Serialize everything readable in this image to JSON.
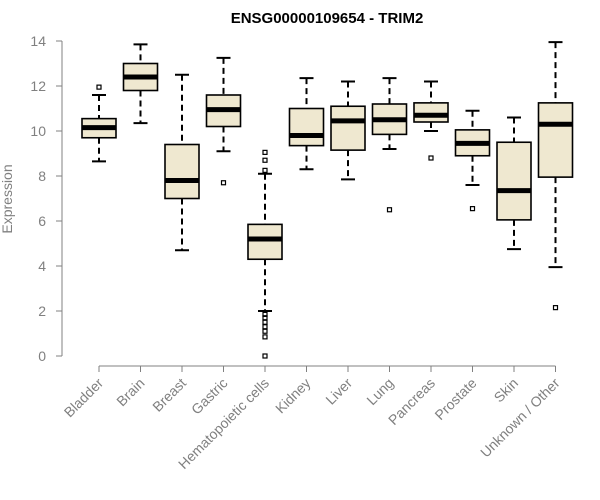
{
  "chart_data": {
    "type": "boxplot",
    "title": "ENSG00000109654 - TRIM2",
    "xlabel": "",
    "ylabel": "Expression",
    "ylim": [
      0,
      14
    ],
    "yticks": [
      0,
      2,
      4,
      6,
      8,
      10,
      12,
      14
    ],
    "categories": [
      "Bladder",
      "Brain",
      "Breast",
      "Gastric",
      "Hematopoietic cells",
      "Kidney",
      "Liver",
      "Lung",
      "Pancreas",
      "Prostate",
      "Skin",
      "Unknown / Other"
    ],
    "boxes": [
      {
        "category": "Bladder",
        "min": 8.65,
        "q1": 9.7,
        "median": 10.15,
        "q3": 10.55,
        "max": 11.6,
        "outliers": [
          11.95
        ]
      },
      {
        "category": "Brain",
        "min": 10.35,
        "q1": 11.8,
        "median": 12.4,
        "q3": 13.0,
        "max": 13.85,
        "outliers": []
      },
      {
        "category": "Breast",
        "min": 4.7,
        "q1": 7.0,
        "median": 7.8,
        "q3": 9.4,
        "max": 12.5,
        "outliers": []
      },
      {
        "category": "Gastric",
        "min": 9.1,
        "q1": 10.2,
        "median": 10.95,
        "q3": 11.6,
        "max": 13.25,
        "outliers": [
          7.7
        ]
      },
      {
        "category": "Hematopoietic cells",
        "min": 2.0,
        "q1": 4.3,
        "median": 5.2,
        "q3": 5.85,
        "max": 8.1,
        "outliers": [
          0.0,
          0.85,
          1.1,
          1.3,
          1.5,
          1.7,
          1.85,
          8.25,
          8.7,
          9.05
        ]
      },
      {
        "category": "Kidney",
        "min": 8.3,
        "q1": 9.35,
        "median": 9.8,
        "q3": 11.0,
        "max": 12.35,
        "outliers": []
      },
      {
        "category": "Liver",
        "min": 7.85,
        "q1": 9.15,
        "median": 10.45,
        "q3": 11.1,
        "max": 12.2,
        "outliers": []
      },
      {
        "category": "Lung",
        "min": 9.2,
        "q1": 9.85,
        "median": 10.5,
        "q3": 11.2,
        "max": 12.35,
        "outliers": [
          6.5
        ]
      },
      {
        "category": "Pancreas",
        "min": 10.0,
        "q1": 10.4,
        "median": 10.7,
        "q3": 11.25,
        "max": 12.2,
        "outliers": [
          8.8
        ]
      },
      {
        "category": "Prostate",
        "min": 7.6,
        "q1": 8.9,
        "median": 9.45,
        "q3": 10.05,
        "max": 10.9,
        "outliers": [
          6.55
        ]
      },
      {
        "category": "Skin",
        "min": 4.75,
        "q1": 6.05,
        "median": 7.35,
        "q3": 9.5,
        "max": 10.6,
        "outliers": []
      },
      {
        "category": "Unknown / Other",
        "min": 3.95,
        "q1": 7.95,
        "median": 10.3,
        "q3": 11.25,
        "max": 13.95,
        "outliers": [
          2.15
        ]
      }
    ],
    "box_fill": "#efe8d0",
    "line_color": "#000000",
    "axis_color": "#808080"
  }
}
